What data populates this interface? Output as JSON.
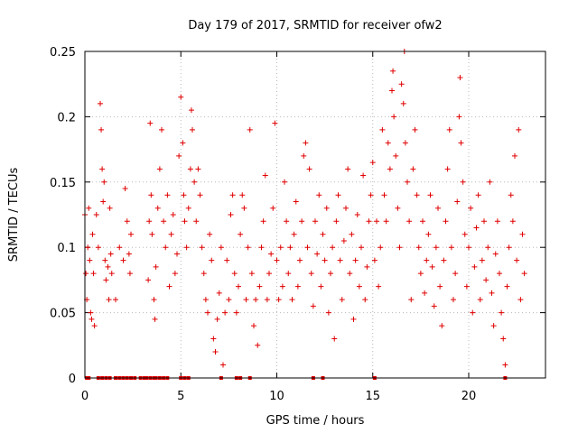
{
  "chart_data": {
    "type": "scatter",
    "title": "Day 179 of 2017, SRMTID for receiver ofw2",
    "xlabel": "GPS time / hours",
    "ylabel": "SRMTID / TECUs",
    "xlim": [
      0,
      24
    ],
    "ylim": [
      0,
      0.25
    ],
    "x_ticks": [
      0,
      5,
      10,
      15,
      20
    ],
    "x_tick_labels": [
      "0",
      "5",
      "10",
      "15",
      "20"
    ],
    "y_ticks": [
      0,
      0.05,
      0.1,
      0.15,
      0.2,
      0.25
    ],
    "y_tick_labels": [
      "0",
      "0.05",
      "0.1",
      "0.15",
      "0.2",
      "0.25"
    ],
    "grid": true,
    "marker": "+",
    "series_color": "#e00000",
    "zero_value_times": [
      0.1,
      0.2,
      0.7,
      0.9,
      1.1,
      1.3,
      1.6,
      1.8,
      2.0,
      2.2,
      2.4,
      2.6,
      2.9,
      3.1,
      3.2,
      3.4,
      3.6,
      3.7,
      3.9,
      4.1,
      4.3,
      5.0,
      5.2,
      5.4,
      7.1,
      7.9,
      8.1,
      8.6,
      11.9,
      12.4,
      15.1,
      21.9
    ],
    "points": [
      [
        0.0,
        0.125
      ],
      [
        0.05,
        0.08
      ],
      [
        0.1,
        0.06
      ],
      [
        0.15,
        0.1
      ],
      [
        0.2,
        0.13
      ],
      [
        0.25,
        0.09
      ],
      [
        0.3,
        0.05
      ],
      [
        0.35,
        0.045
      ],
      [
        0.4,
        0.11
      ],
      [
        0.45,
        0.08
      ],
      [
        0.5,
        0.04
      ],
      [
        0.6,
        0.125
      ],
      [
        0.7,
        0.1
      ],
      [
        0.8,
        0.21
      ],
      [
        0.85,
        0.19
      ],
      [
        0.9,
        0.16
      ],
      [
        0.95,
        0.135
      ],
      [
        1.0,
        0.15
      ],
      [
        1.05,
        0.09
      ],
      [
        1.1,
        0.075
      ],
      [
        1.2,
        0.085
      ],
      [
        1.25,
        0.06
      ],
      [
        1.3,
        0.13
      ],
      [
        1.35,
        0.095
      ],
      [
        1.4,
        0.08
      ],
      [
        1.6,
        0.06
      ],
      [
        1.8,
        0.1
      ],
      [
        2.0,
        0.09
      ],
      [
        2.1,
        0.145
      ],
      [
        2.2,
        0.12
      ],
      [
        2.3,
        0.095
      ],
      [
        2.35,
        0.08
      ],
      [
        2.4,
        0.11
      ],
      [
        3.3,
        0.075
      ],
      [
        3.35,
        0.12
      ],
      [
        3.4,
        0.195
      ],
      [
        3.45,
        0.14
      ],
      [
        3.5,
        0.11
      ],
      [
        3.6,
        0.06
      ],
      [
        3.65,
        0.045
      ],
      [
        3.7,
        0.085
      ],
      [
        3.8,
        0.13
      ],
      [
        3.9,
        0.16
      ],
      [
        4.0,
        0.19
      ],
      [
        4.1,
        0.12
      ],
      [
        4.2,
        0.1
      ],
      [
        4.3,
        0.14
      ],
      [
        4.4,
        0.07
      ],
      [
        4.5,
        0.11
      ],
      [
        4.6,
        0.125
      ],
      [
        4.7,
        0.08
      ],
      [
        4.8,
        0.095
      ],
      [
        4.9,
        0.17
      ],
      [
        5.0,
        0.215
      ],
      [
        5.1,
        0.18
      ],
      [
        5.15,
        0.14
      ],
      [
        5.2,
        0.12
      ],
      [
        5.3,
        0.1
      ],
      [
        5.4,
        0.13
      ],
      [
        5.5,
        0.16
      ],
      [
        5.55,
        0.205
      ],
      [
        5.6,
        0.19
      ],
      [
        5.7,
        0.15
      ],
      [
        5.8,
        0.12
      ],
      [
        5.9,
        0.16
      ],
      [
        6.0,
        0.14
      ],
      [
        6.1,
        0.1
      ],
      [
        6.2,
        0.08
      ],
      [
        6.3,
        0.06
      ],
      [
        6.4,
        0.05
      ],
      [
        6.5,
        0.11
      ],
      [
        6.6,
        0.09
      ],
      [
        6.7,
        0.03
      ],
      [
        6.8,
        0.02
      ],
      [
        6.9,
        0.045
      ],
      [
        7.0,
        0.065
      ],
      [
        7.1,
        0.1
      ],
      [
        7.2,
        0.01
      ],
      [
        7.3,
        0.05
      ],
      [
        7.4,
        0.09
      ],
      [
        7.5,
        0.06
      ],
      [
        7.6,
        0.125
      ],
      [
        7.7,
        0.14
      ],
      [
        7.8,
        0.08
      ],
      [
        7.9,
        0.05
      ],
      [
        8.0,
        0.07
      ],
      [
        8.1,
        0.11
      ],
      [
        8.2,
        0.14
      ],
      [
        8.3,
        0.13
      ],
      [
        8.4,
        0.06
      ],
      [
        8.5,
        0.1
      ],
      [
        8.6,
        0.19
      ],
      [
        8.7,
        0.08
      ],
      [
        8.8,
        0.04
      ],
      [
        8.9,
        0.06
      ],
      [
        9.0,
        0.025
      ],
      [
        9.1,
        0.07
      ],
      [
        9.2,
        0.1
      ],
      [
        9.3,
        0.12
      ],
      [
        9.4,
        0.155
      ],
      [
        9.5,
        0.06
      ],
      [
        9.6,
        0.08
      ],
      [
        9.7,
        0.095
      ],
      [
        9.8,
        0.13
      ],
      [
        9.9,
        0.195
      ],
      [
        10.0,
        0.09
      ],
      [
        10.1,
        0.06
      ],
      [
        10.2,
        0.1
      ],
      [
        10.3,
        0.07
      ],
      [
        10.4,
        0.15
      ],
      [
        10.5,
        0.12
      ],
      [
        10.6,
        0.08
      ],
      [
        10.7,
        0.1
      ],
      [
        10.8,
        0.06
      ],
      [
        10.9,
        0.11
      ],
      [
        11.0,
        0.135
      ],
      [
        11.1,
        0.07
      ],
      [
        11.2,
        0.09
      ],
      [
        11.3,
        0.12
      ],
      [
        11.4,
        0.17
      ],
      [
        11.5,
        0.18
      ],
      [
        11.6,
        0.1
      ],
      [
        11.7,
        0.16
      ],
      [
        11.8,
        0.08
      ],
      [
        11.9,
        0.055
      ],
      [
        12.0,
        0.12
      ],
      [
        12.1,
        0.095
      ],
      [
        12.2,
        0.14
      ],
      [
        12.3,
        0.07
      ],
      [
        12.4,
        0.11
      ],
      [
        12.5,
        0.09
      ],
      [
        12.6,
        0.13
      ],
      [
        12.7,
        0.05
      ],
      [
        12.8,
        0.08
      ],
      [
        12.9,
        0.1
      ],
      [
        13.0,
        0.03
      ],
      [
        13.1,
        0.12
      ],
      [
        13.2,
        0.14
      ],
      [
        13.3,
        0.09
      ],
      [
        13.4,
        0.06
      ],
      [
        13.5,
        0.105
      ],
      [
        13.6,
        0.13
      ],
      [
        13.7,
        0.16
      ],
      [
        13.8,
        0.08
      ],
      [
        13.9,
        0.11
      ],
      [
        14.0,
        0.045
      ],
      [
        14.1,
        0.09
      ],
      [
        14.2,
        0.125
      ],
      [
        14.3,
        0.07
      ],
      [
        14.4,
        0.1
      ],
      [
        14.5,
        0.155
      ],
      [
        14.6,
        0.06
      ],
      [
        14.7,
        0.085
      ],
      [
        14.8,
        0.12
      ],
      [
        14.9,
        0.14
      ],
      [
        15.0,
        0.165
      ],
      [
        15.1,
        0.09
      ],
      [
        15.2,
        0.12
      ],
      [
        15.3,
        0.07
      ],
      [
        15.4,
        0.1
      ],
      [
        15.5,
        0.19
      ],
      [
        15.6,
        0.14
      ],
      [
        15.7,
        0.12
      ],
      [
        15.8,
        0.18
      ],
      [
        15.9,
        0.16
      ],
      [
        16.0,
        0.22
      ],
      [
        16.05,
        0.235
      ],
      [
        16.1,
        0.2
      ],
      [
        16.2,
        0.17
      ],
      [
        16.3,
        0.13
      ],
      [
        16.4,
        0.1
      ],
      [
        16.5,
        0.225
      ],
      [
        16.6,
        0.21
      ],
      [
        16.65,
        0.25
      ],
      [
        16.7,
        0.18
      ],
      [
        16.8,
        0.15
      ],
      [
        16.9,
        0.12
      ],
      [
        17.0,
        0.06
      ],
      [
        17.1,
        0.16
      ],
      [
        17.2,
        0.19
      ],
      [
        17.3,
        0.14
      ],
      [
        17.4,
        0.1
      ],
      [
        17.5,
        0.08
      ],
      [
        17.6,
        0.12
      ],
      [
        17.7,
        0.065
      ],
      [
        17.8,
        0.09
      ],
      [
        17.9,
        0.11
      ],
      [
        18.0,
        0.14
      ],
      [
        18.1,
        0.085
      ],
      [
        18.2,
        0.055
      ],
      [
        18.3,
        0.1
      ],
      [
        18.4,
        0.13
      ],
      [
        18.5,
        0.07
      ],
      [
        18.6,
        0.04
      ],
      [
        18.7,
        0.09
      ],
      [
        18.8,
        0.12
      ],
      [
        18.9,
        0.16
      ],
      [
        19.0,
        0.19
      ],
      [
        19.1,
        0.1
      ],
      [
        19.2,
        0.06
      ],
      [
        19.3,
        0.08
      ],
      [
        19.4,
        0.135
      ],
      [
        19.5,
        0.2
      ],
      [
        19.55,
        0.23
      ],
      [
        19.6,
        0.18
      ],
      [
        19.7,
        0.15
      ],
      [
        19.8,
        0.11
      ],
      [
        19.9,
        0.07
      ],
      [
        20.0,
        0.1
      ],
      [
        20.1,
        0.13
      ],
      [
        20.2,
        0.05
      ],
      [
        20.3,
        0.085
      ],
      [
        20.4,
        0.115
      ],
      [
        20.5,
        0.14
      ],
      [
        20.6,
        0.06
      ],
      [
        20.7,
        0.09
      ],
      [
        20.8,
        0.12
      ],
      [
        20.9,
        0.075
      ],
      [
        21.0,
        0.1
      ],
      [
        21.1,
        0.15
      ],
      [
        21.2,
        0.065
      ],
      [
        21.3,
        0.04
      ],
      [
        21.4,
        0.095
      ],
      [
        21.5,
        0.12
      ],
      [
        21.6,
        0.08
      ],
      [
        21.7,
        0.05
      ],
      [
        21.8,
        0.03
      ],
      [
        21.9,
        0.01
      ],
      [
        22.0,
        0.07
      ],
      [
        22.1,
        0.1
      ],
      [
        22.2,
        0.14
      ],
      [
        22.3,
        0.12
      ],
      [
        22.4,
        0.17
      ],
      [
        22.5,
        0.09
      ],
      [
        22.6,
        0.19
      ],
      [
        22.7,
        0.06
      ],
      [
        22.8,
        0.11
      ],
      [
        22.9,
        0.08
      ]
    ]
  }
}
